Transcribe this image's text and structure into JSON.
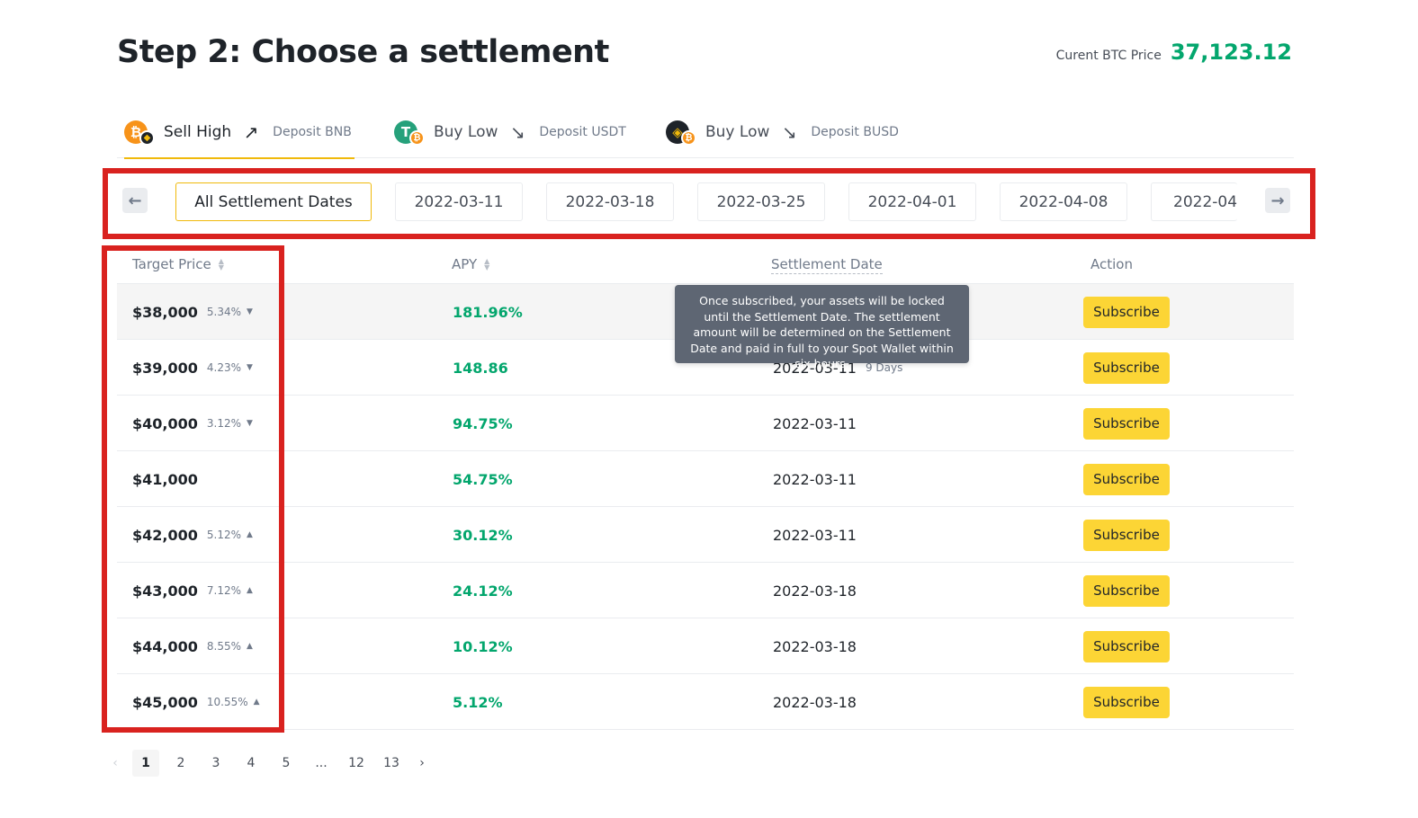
{
  "header": {
    "title": "Step 2: Choose a settlement",
    "btc_price_label": "Curent BTC Price",
    "btc_price_value": "37,123.12"
  },
  "strategy_tabs": [
    {
      "label": "Sell High",
      "arrow": "↗",
      "sub": "Deposit BNB",
      "coins": [
        "btc-icon",
        "bnb-icon"
      ],
      "active": true
    },
    {
      "label": "Buy Low",
      "arrow": "↘",
      "sub": "Deposit USDT",
      "coins": [
        "usdt-icon",
        "btc-icon"
      ],
      "active": false
    },
    {
      "label": "Buy Low",
      "arrow": "↘",
      "sub": "Deposit BUSD",
      "coins": [
        "busd-icon",
        "btc-icon"
      ],
      "active": false
    }
  ],
  "date_filter": {
    "all_label": "All Settlement Dates",
    "dates": [
      "2022-03-11",
      "2022-03-18",
      "2022-03-25",
      "2022-04-01",
      "2022-04-08",
      "2022-04-"
    ],
    "prev_icon": "arrow-left-icon",
    "next_icon": "arrow-right-icon"
  },
  "table": {
    "headers": {
      "target_price": "Target Price",
      "apy": "APY",
      "settlement_date": "Settlement Date",
      "action": "Action"
    },
    "action_label": "Subscribe",
    "rows": [
      {
        "price": "$38,000",
        "pct": "5.34%",
        "dir": "▼",
        "apy": "181.96%",
        "date": "",
        "days": ""
      },
      {
        "price": "$39,000",
        "pct": "4.23%",
        "dir": "▼",
        "apy": "148.86",
        "date": "2022-03-11",
        "days": "9 Days"
      },
      {
        "price": "$40,000",
        "pct": "3.12%",
        "dir": "▼",
        "apy": "94.75%",
        "date": "2022-03-11",
        "days": ""
      },
      {
        "price": "$41,000",
        "pct": "",
        "dir": "",
        "apy": "54.75%",
        "date": "2022-03-11",
        "days": ""
      },
      {
        "price": "$42,000",
        "pct": "5.12%",
        "dir": "▲",
        "apy": "30.12%",
        "date": "2022-03-11",
        "days": ""
      },
      {
        "price": "$43,000",
        "pct": "7.12%",
        "dir": "▲",
        "apy": "24.12%",
        "date": "2022-03-18",
        "days": ""
      },
      {
        "price": "$44,000",
        "pct": "8.55%",
        "dir": "▲",
        "apy": "10.12%",
        "date": "2022-03-18",
        "days": ""
      },
      {
        "price": "$45,000",
        "pct": "10.55%",
        "dir": "▲",
        "apy": "5.12%",
        "date": "2022-03-18",
        "days": ""
      }
    ]
  },
  "tooltip": {
    "text": "Once subscribed, your assets will be locked until the Settlement Date. The settlement amount will be determined on the Settlement Date and paid in full to your Spot Wallet within six hours."
  },
  "pagination": {
    "prev": "‹",
    "pages": [
      "1",
      "2",
      "3",
      "4",
      "5",
      "...",
      "12",
      "13"
    ],
    "current": "1",
    "next": "›"
  },
  "colors": {
    "accent": "#f0b90b",
    "button": "#fcd535",
    "positive": "#03a66d",
    "highlight_box": "#d9221f"
  }
}
